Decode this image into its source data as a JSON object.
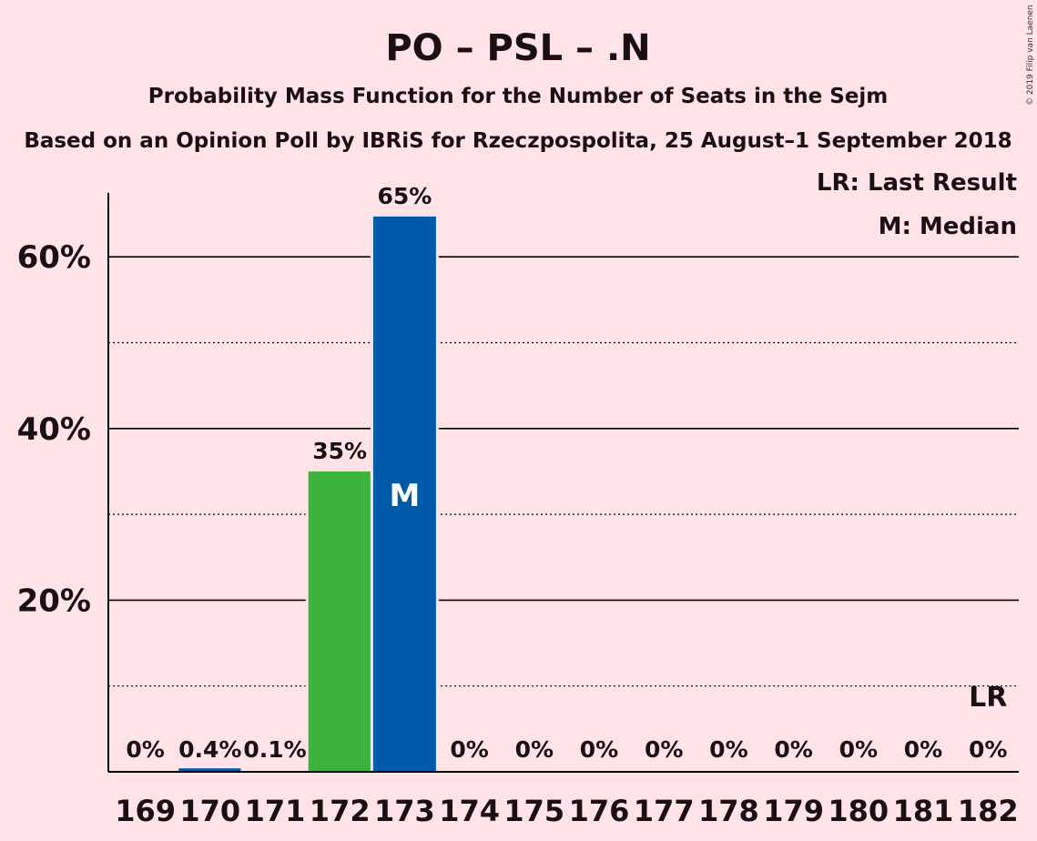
{
  "header": {
    "title": "PO – PSL – .N",
    "subtitle": "Probability Mass Function for the Number of Seats in the Sejm",
    "poll_line": "Based on an Opinion Poll by IBRiS for Rzeczpospolita, 25 August–1 September 2018",
    "credit": "© 2019 Filip van Laenen"
  },
  "legend": {
    "last_result": "LR: Last Result",
    "median": "M: Median"
  },
  "chart_data": {
    "type": "bar",
    "title": "PO – PSL – .N",
    "subtitle": "Probability Mass Function for the Number of Seats in the Sejm",
    "categories": [
      "169",
      "170",
      "171",
      "172",
      "173",
      "174",
      "175",
      "176",
      "177",
      "178",
      "179",
      "180",
      "181",
      "182"
    ],
    "values": [
      0,
      0.4,
      0.1,
      35,
      64.7,
      0,
      0,
      0,
      0,
      0,
      0,
      0,
      0,
      0
    ],
    "value_labels": [
      "0%",
      "0.4%",
      "0.1%",
      "35%",
      "65%",
      "0%",
      "0%",
      "0%",
      "0%",
      "0%",
      "0%",
      "0%",
      "0%",
      "0%"
    ],
    "bar_colors": [
      "#005AAA",
      "#005AAA",
      "#005AAA",
      "#3DB33D",
      "#005AAA",
      "#005AAA",
      "#005AAA",
      "#005AAA",
      "#005AAA",
      "#005AAA",
      "#005AAA",
      "#005AAA",
      "#005AAA",
      "#005AAA"
    ],
    "y_ticks": [
      20,
      40,
      60
    ],
    "y_tick_labels": [
      "20%",
      "40%",
      "60%"
    ],
    "ylim": [
      0,
      70
    ],
    "grid": {
      "major": [
        20,
        40,
        60
      ],
      "minor_dotted": [
        10,
        30,
        50
      ]
    },
    "median_category": "173",
    "median_marker": "M",
    "last_result_category": "182",
    "last_result_marker": "LR",
    "legend_position": "top-right",
    "colors": {
      "background": "#FFE3E8",
      "po": "#005AAA",
      "highlight": "#3DB33D"
    }
  }
}
